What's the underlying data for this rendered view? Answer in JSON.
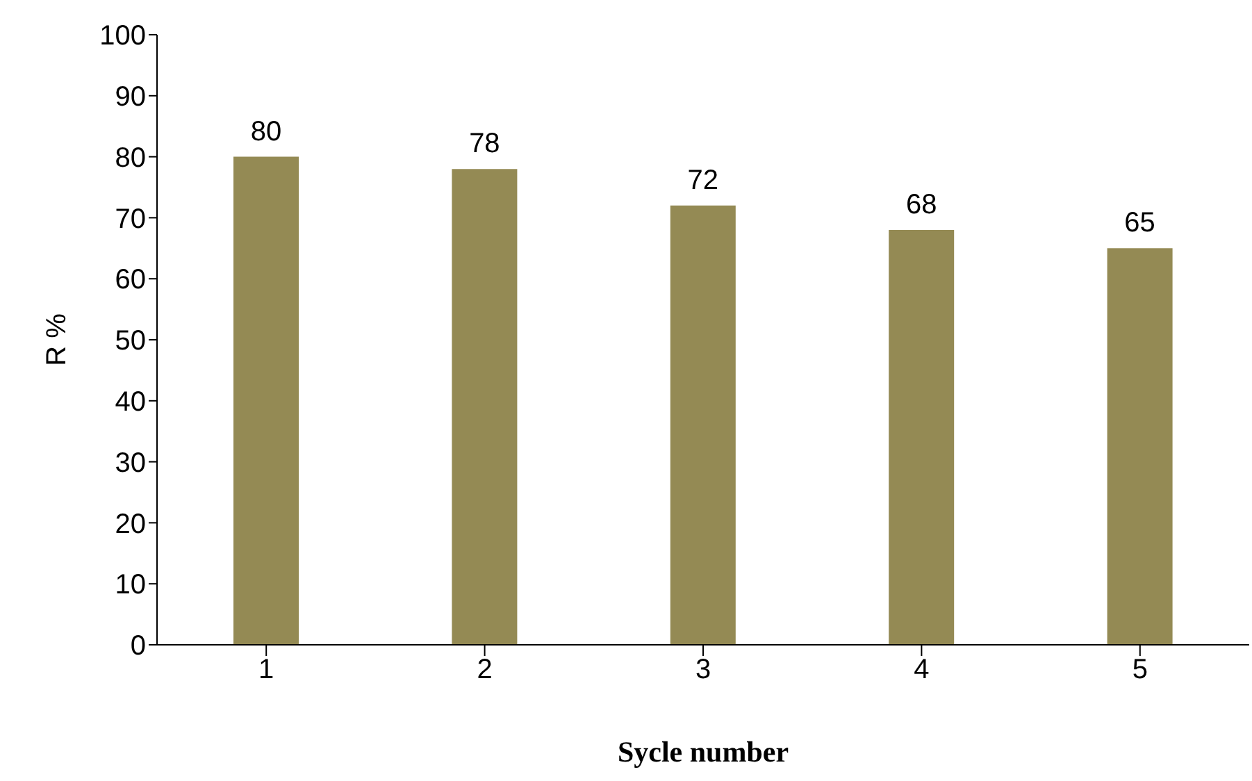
{
  "chart_data": {
    "type": "bar",
    "xlabel": "Sycle number",
    "ylabel": "R %",
    "categories": [
      "1",
      "2",
      "3",
      "4",
      "5"
    ],
    "values": [
      80,
      78,
      72,
      68,
      65
    ],
    "color": "#948a54",
    "ylim": [
      0,
      100
    ],
    "yticks": [
      0,
      10,
      20,
      30,
      40,
      50,
      60,
      70,
      80,
      90,
      100
    ],
    "grid": false,
    "data_labels": true
  }
}
